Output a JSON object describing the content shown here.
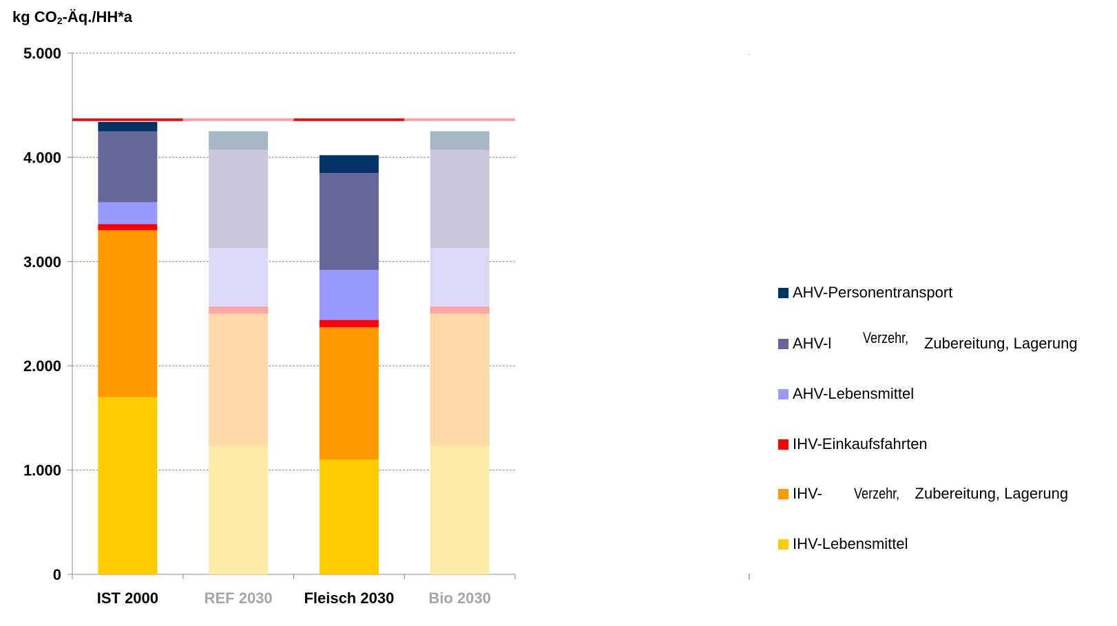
{
  "chart_data": {
    "type": "bar",
    "stacked": true,
    "ylabel_parts": {
      "pre": "kg CO",
      "sub": "2",
      "post": "-Äq./HH*a"
    },
    "ylim": [
      0,
      5000
    ],
    "yticks": [
      {
        "value": 0,
        "label": "0"
      },
      {
        "value": 1000,
        "label": "1.000"
      },
      {
        "value": 2000,
        "label": "2.000"
      },
      {
        "value": 3000,
        "label": "3.000"
      },
      {
        "value": 4000,
        "label": "4.000"
      },
      {
        "value": 5000,
        "label": "5.000"
      }
    ],
    "grid": true,
    "categories": [
      {
        "label": "IST 2000",
        "faded": false
      },
      {
        "label": "REF 2030",
        "faded": true
      },
      {
        "label": "Fleisch 2030",
        "faded": false
      },
      {
        "label": "Bio 2030",
        "faded": true
      }
    ],
    "reference_line": {
      "value": 4360
    },
    "series": [
      {
        "key": "ihv_lm",
        "color": "#FFCC00",
        "faded_color": "#FDEBA6",
        "values": [
          1700,
          1230,
          1100,
          1230
        ]
      },
      {
        "key": "ihv_vz",
        "color": "#FF9900",
        "faded_color": "#FDD9A7",
        "values": [
          1600,
          1270,
          1270,
          1270
        ]
      },
      {
        "key": "ihv_ek",
        "color": "#FF0000",
        "faded_color": "#FBA6A6",
        "values": [
          60,
          70,
          70,
          70
        ]
      },
      {
        "key": "ahv_lm",
        "color": "#9999FF",
        "faded_color": "#DADAF8",
        "values": [
          210,
          560,
          480,
          560
        ]
      },
      {
        "key": "ahv_vz",
        "color": "#666699",
        "faded_color": "#C9C7DA",
        "values": [
          680,
          940,
          930,
          940
        ]
      },
      {
        "key": "ahv_pt",
        "color": "#003366",
        "faded_color": "#A6B7C8",
        "values": [
          90,
          180,
          170,
          180
        ]
      }
    ]
  },
  "legend": {
    "items": [
      {
        "color": "#003366",
        "parts": [
          "AHV-Personentransport"
        ]
      },
      {
        "color": "#666699",
        "parts": [
          "AHV-l",
          "Verzehr,",
          "Zubereitung, Lagerung"
        ]
      },
      {
        "color": "#9999FF",
        "parts": [
          "AHV-Lebensmittel"
        ]
      },
      {
        "color": "#FF0000",
        "parts": [
          "IHV-Einkaufsfahrten"
        ]
      },
      {
        "color": "#FF9900",
        "parts": [
          "IHV-",
          "Verzehr,",
          "Zubereitung, Lagerung"
        ]
      },
      {
        "color": "#FFCC00",
        "parts": [
          "IHV-Lebensmittel"
        ]
      }
    ]
  }
}
